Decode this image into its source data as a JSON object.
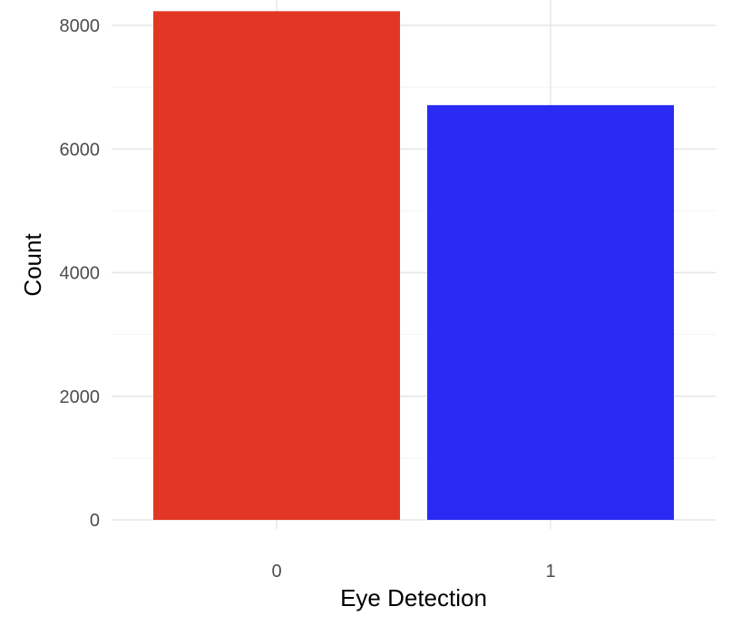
{
  "chart_data": {
    "type": "bar",
    "categories": [
      "0",
      "1"
    ],
    "values": [
      8230,
      6710
    ],
    "colors": [
      "#e23726",
      "#2a2af5"
    ],
    "xlabel": "Eye Detection",
    "ylabel": "Count",
    "ylim": [
      0,
      8500
    ],
    "yticks": [
      0,
      2000,
      4000,
      6000,
      8000
    ],
    "ytick_labels": [
      "0",
      "2000",
      "4000",
      "6000",
      "8000"
    ],
    "grid": true,
    "legend": "none"
  }
}
